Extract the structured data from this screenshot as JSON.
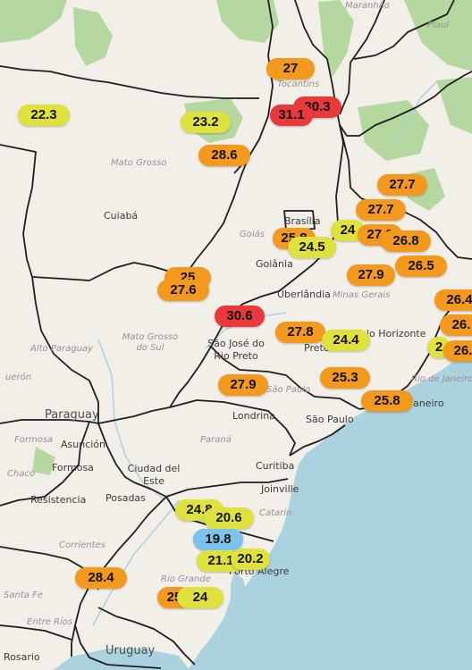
{
  "colors": {
    "land": "#f2efe9",
    "water": "#aad3df",
    "border": "#1f1f1f",
    "green": "#b5d8a1",
    "temp_yellow": "#dfe23d",
    "temp_orange": "#f39a1e",
    "temp_red": "#e8393c",
    "temp_blue": "#7cc3ec"
  },
  "labels": {
    "maranhao": "Maranhão",
    "piaui": "Piauí",
    "tocantins": "Tocantins",
    "mato_grosso": "Mato Grosso",
    "cuiaba": "Cuiabá",
    "goias": "Goiás",
    "brasilia": "Brasília",
    "goiania": "Goiânia",
    "uberlandia": "Uberlândia",
    "minas_gerais": "Minas Gerais",
    "belo_horizonte": "lo Horizonte",
    "mato_grosso_do_sul": "Mato Grosso do Sul",
    "alto_paraguay": "Alto Paraguay",
    "queron": "uerón",
    "sao_jose": "São José do Rio Preto",
    "preto": "Preto",
    "paraguay": "Paraguay",
    "sao_paulo_state": "São Paulo",
    "rio_de_janeiro": "Rio de Janeiro",
    "janeiro": "aneiro",
    "sao_paulo_city": "São Paulo",
    "londrina": "Londrina",
    "formosa_region": "Formosa",
    "asuncion": "Asunción",
    "formosa": "Formosa",
    "ciudad_del_este": "Ciudad del Este",
    "parana": "Paraná",
    "chaco": "Chaco",
    "curitiba": "Curitiba",
    "resistencia": "Resistencia",
    "posadas": "Posadas",
    "joinville": "Joinville",
    "catarina": "Catarin",
    "corrientes": "Corrientes",
    "rio_grande": "Rio Grande",
    "porto_alegre": "Porto Alegre",
    "santa_fe": "Santa Fe",
    "entre_rios": "Entre Ríos",
    "rosario": "Rosario",
    "uruguay": "Uruguay"
  },
  "temperatures": [
    {
      "id": "t-27-tocantins",
      "value": "27",
      "level": "orange"
    },
    {
      "id": "t-22-3",
      "value": "22.3",
      "level": "yellow"
    },
    {
      "id": "t-23-2",
      "value": "23.2",
      "level": "yellow"
    },
    {
      "id": "t-30-3",
      "value": "30.3",
      "level": "red"
    },
    {
      "id": "t-31-1",
      "value": "31.1",
      "level": "red"
    },
    {
      "id": "t-28-6",
      "value": "28.6",
      "level": "orange"
    },
    {
      "id": "t-27-7-a",
      "value": "27.7",
      "level": "orange"
    },
    {
      "id": "t-27-7-b",
      "value": "27.7",
      "level": "orange"
    },
    {
      "id": "t-25-8-goias",
      "value": "25.8",
      "level": "orange"
    },
    {
      "id": "t-24-brasilia",
      "value": "24",
      "level": "yellow"
    },
    {
      "id": "t-27-9-mg",
      "value": "27.9",
      "level": "orange"
    },
    {
      "id": "t-24-5",
      "value": "24.5",
      "level": "yellow"
    },
    {
      "id": "t-26-8",
      "value": "26.8",
      "level": "orange"
    },
    {
      "id": "t-26-5",
      "value": "26.5",
      "level": "orange"
    },
    {
      "id": "t-27-9-minas",
      "value": "27.9",
      "level": "orange"
    },
    {
      "id": "t-26-4",
      "value": "26.4",
      "level": "orange"
    },
    {
      "id": "t-26-east",
      "value": "26.",
      "level": "orange"
    },
    {
      "id": "t-2-east",
      "value": "2",
      "level": "yellow"
    },
    {
      "id": "t-26-east2",
      "value": "26.",
      "level": "orange"
    },
    {
      "id": "t-25-ms",
      "value": "25",
      "level": "orange"
    },
    {
      "id": "t-27-6",
      "value": "27.6",
      "level": "orange"
    },
    {
      "id": "t-30-6",
      "value": "30.6",
      "level": "red"
    },
    {
      "id": "t-27-8",
      "value": "27.8",
      "level": "orange"
    },
    {
      "id": "t-24-4",
      "value": "24.4",
      "level": "yellow"
    },
    {
      "id": "t-25-3",
      "value": "25.3",
      "level": "orange"
    },
    {
      "id": "t-27-9-sp",
      "value": "27.9",
      "level": "orange"
    },
    {
      "id": "t-25-8-sp",
      "value": "25.8",
      "level": "orange"
    },
    {
      "id": "t-24-8",
      "value": "24.8",
      "level": "yellow"
    },
    {
      "id": "t-20-6",
      "value": "20.6",
      "level": "yellow"
    },
    {
      "id": "t-19-8",
      "value": "19.8",
      "level": "blue"
    },
    {
      "id": "t-21-1",
      "value": "21.1",
      "level": "yellow"
    },
    {
      "id": "t-20-2",
      "value": "20.2",
      "level": "yellow"
    },
    {
      "id": "t-28-4",
      "value": "28.4",
      "level": "orange"
    },
    {
      "id": "t-25-rs",
      "value": "25",
      "level": "orange"
    },
    {
      "id": "t-24-rs",
      "value": "24",
      "level": "yellow"
    }
  ]
}
